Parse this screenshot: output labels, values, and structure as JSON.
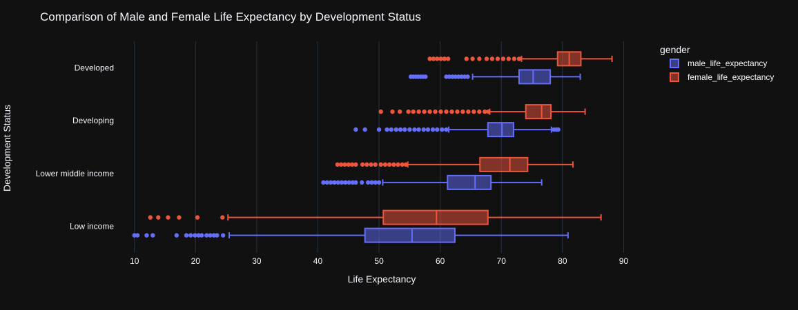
{
  "chart_data": {
    "type": "box",
    "orientation": "horizontal",
    "title": "Comparison of Male and Female Life Expectancy by Development Status",
    "xlabel": "Life Expectancy",
    "ylabel": "Development Status",
    "xlim": [
      8,
      93
    ],
    "xticks": [
      10,
      20,
      30,
      40,
      50,
      60,
      70,
      80,
      90
    ],
    "grid": true,
    "legend": {
      "title": "gender",
      "placement": "top-right"
    },
    "categories": [
      "Developed",
      "Developing",
      "Lower middle income",
      "Low income"
    ],
    "series": [
      {
        "name": "male_life_expectancy",
        "color": "#636efa",
        "boxes": [
          {
            "category": "Developed",
            "lower_fence": 65.3,
            "q1": 72.9,
            "median": 75.2,
            "q3": 78.0,
            "upper_fence": 82.9,
            "outliers": [
              55.2,
              55.6,
              56.0,
              56.4,
              56.8,
              57.2,
              57.6,
              61.0,
              61.5,
              62.0,
              62.5,
              63.0,
              63.5,
              64.0,
              64.5
            ]
          },
          {
            "category": "Developing",
            "lower_fence": 61.4,
            "q1": 67.8,
            "median": 70.1,
            "q3": 72.0,
            "upper_fence": 78.2,
            "outliers": [
              46.2,
              47.7,
              50.0,
              51.3,
              52.0,
              52.8,
              53.5,
              54.2,
              55.0,
              55.8,
              56.5,
              57.3,
              58.0,
              58.8,
              59.5,
              60.3,
              61.0,
              78.6,
              79.0,
              79.3
            ]
          },
          {
            "category": "Lower middle income",
            "lower_fence": 50.6,
            "q1": 61.2,
            "median": 65.7,
            "q3": 68.3,
            "upper_fence": 76.6,
            "outliers": [
              40.9,
              41.5,
              42.1,
              42.7,
              43.3,
              43.9,
              44.5,
              45.1,
              45.7,
              46.2,
              47.2,
              48.2,
              48.8,
              49.4,
              50.0
            ]
          },
          {
            "category": "Low income",
            "lower_fence": 25.5,
            "q1": 47.7,
            "median": 55.4,
            "q3": 62.4,
            "upper_fence": 80.9,
            "outliers": [
              10.0,
              10.5,
              12.0,
              13.0,
              16.9,
              18.5,
              19.2,
              19.9,
              20.5,
              21.0,
              21.8,
              22.4,
              23.0,
              23.5,
              24.5
            ]
          }
        ]
      },
      {
        "name": "female_life_expectancy",
        "color": "#ef553b",
        "boxes": [
          {
            "category": "Developed",
            "lower_fence": 73.3,
            "q1": 79.2,
            "median": 81.1,
            "q3": 83.0,
            "upper_fence": 88.1,
            "outliers": [
              58.3,
              58.9,
              59.5,
              60.1,
              60.7,
              61.3,
              64.3,
              65.3,
              66.4,
              67.6,
              68.5,
              69.4,
              70.3,
              71.2,
              72.1,
              72.9
            ]
          },
          {
            "category": "Developing",
            "lower_fence": 68.1,
            "q1": 74.0,
            "median": 76.6,
            "q3": 78.1,
            "upper_fence": 83.7,
            "outliers": [
              50.3,
              52.2,
              53.4,
              54.8,
              55.6,
              56.5,
              57.4,
              58.3,
              59.2,
              60.1,
              61.0,
              61.9,
              62.8,
              63.7,
              64.6,
              65.5,
              66.4,
              67.3,
              67.9
            ]
          },
          {
            "category": "Lower middle income",
            "lower_fence": 54.7,
            "q1": 66.5,
            "median": 71.4,
            "q3": 74.3,
            "upper_fence": 81.7,
            "outliers": [
              43.2,
              43.8,
              44.4,
              45.0,
              45.6,
              46.2,
              47.3,
              48.0,
              48.7,
              49.4,
              50.3,
              51.0,
              51.7,
              52.4,
              53.1,
              53.8,
              54.4
            ]
          },
          {
            "category": "Low income",
            "lower_fence": 25.3,
            "q1": 50.7,
            "median": 59.4,
            "q3": 67.8,
            "upper_fence": 86.3,
            "outliers": [
              12.6,
              13.9,
              15.5,
              17.3,
              20.3,
              24.4
            ]
          }
        ]
      }
    ]
  }
}
